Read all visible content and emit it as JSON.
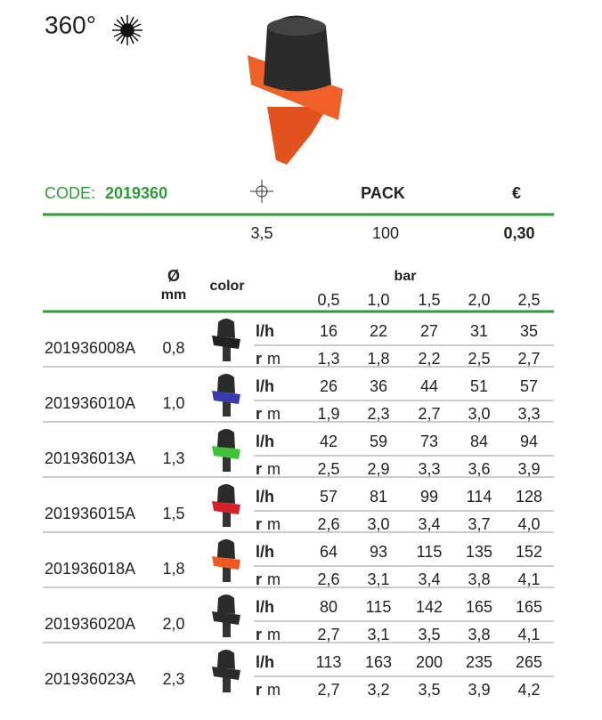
{
  "header": {
    "title": "360°"
  },
  "code": {
    "label": "CODE:",
    "value": "2019360"
  },
  "summary": {
    "pack_label": "PACK",
    "price_label": "€",
    "spray": "3,5",
    "pack": "100",
    "price": "0,30"
  },
  "table": {
    "diameter_label": "Ø",
    "diameter_unit": "mm",
    "color_label": "color",
    "pressure_label": "bar",
    "pressures": [
      "0,5",
      "1,0",
      "1,5",
      "2,0",
      "2,5"
    ],
    "flow_label": "l/h",
    "radius_label": "r",
    "radius_unit": "m",
    "rows": [
      {
        "code": "201936008A",
        "diameter": "0,8",
        "color": "#222222",
        "flow": [
          "16",
          "22",
          "27",
          "31",
          "35"
        ],
        "radius": [
          "1,3",
          "1,8",
          "2,2",
          "2,5",
          "2,7"
        ]
      },
      {
        "code": "201936010A",
        "diameter": "1,0",
        "color": "#3b3bb0",
        "flow": [
          "26",
          "36",
          "44",
          "51",
          "57"
        ],
        "radius": [
          "1,9",
          "2,3",
          "2,7",
          "3,0",
          "3,3"
        ]
      },
      {
        "code": "201936013A",
        "diameter": "1,3",
        "color": "#3fc23a",
        "flow": [
          "42",
          "59",
          "73",
          "84",
          "94"
        ],
        "radius": [
          "2,5",
          "2,9",
          "3,3",
          "3,6",
          "3,9"
        ]
      },
      {
        "code": "201936015A",
        "diameter": "1,5",
        "color": "#d8202a",
        "flow": [
          "57",
          "81",
          "99",
          "114",
          "128"
        ],
        "radius": [
          "2,6",
          "3,0",
          "3,4",
          "3,7",
          "4,0"
        ]
      },
      {
        "code": "201936018A",
        "diameter": "1,8",
        "color": "#f05a22",
        "flow": [
          "64",
          "93",
          "115",
          "135",
          "152"
        ],
        "radius": [
          "2,6",
          "3,1",
          "3,4",
          "3,8",
          "4,1"
        ]
      },
      {
        "code": "201936020A",
        "diameter": "2,0",
        "color": "#2a2a2a",
        "flow": [
          "80",
          "115",
          "142",
          "165",
          "165"
        ],
        "radius": [
          "2,7",
          "3,1",
          "3,5",
          "3,8",
          "4,1"
        ]
      },
      {
        "code": "201936023A",
        "diameter": "2,3",
        "color": "#2a2a2a",
        "flow": [
          "113",
          "163",
          "200",
          "235",
          "265"
        ],
        "radius": [
          "2,7",
          "3,2",
          "3,5",
          "3,9",
          "4,2"
        ]
      }
    ]
  }
}
